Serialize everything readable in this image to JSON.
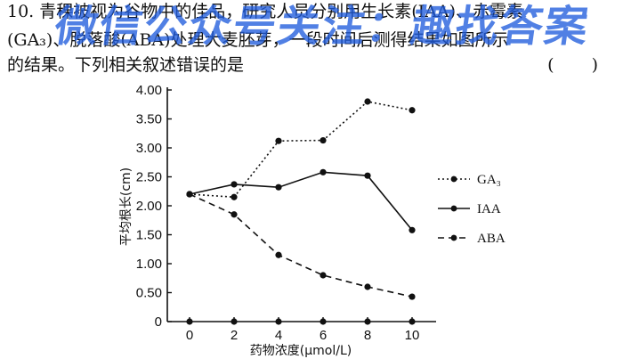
{
  "question": {
    "line1": "10. 青稞被视为谷物中的佳品，研究人员分别用生长素(IAA)、赤霉素",
    "line2": "(GA₃)、脱落酸(ABA)处理大麦胚芽，一段时间后测得结果如图所示",
    "line3": "的结果。下列相关叙述错误的是",
    "answer_parens": "(  )"
  },
  "watermark": "微信公众号关注：趣找答案",
  "chart_data": {
    "type": "line",
    "x": [
      0,
      2,
      4,
      6,
      8,
      10
    ],
    "xlabel": "药物浓度(μmol/L)",
    "ylabel": "平均根长(cm)",
    "ylim": [
      0,
      4.0
    ],
    "xticks": [
      "0",
      "2",
      "4",
      "6",
      "8",
      "10"
    ],
    "yticks": [
      "0",
      "0.50",
      "1.00",
      "1.50",
      "2.00",
      "2.50",
      "3.00",
      "3.50",
      "4.00"
    ],
    "grid": false,
    "legend_position": "right",
    "series": [
      {
        "name": "GA₃",
        "style": "dotted",
        "values": [
          2.2,
          2.15,
          3.12,
          3.13,
          3.8,
          3.65
        ]
      },
      {
        "name": "IAA",
        "style": "solid",
        "values": [
          2.2,
          2.37,
          2.32,
          2.58,
          2.52,
          1.58
        ]
      },
      {
        "name": "ABA",
        "style": "dashed",
        "values": [
          2.2,
          1.85,
          1.15,
          0.8,
          0.6,
          0.43
        ]
      }
    ]
  }
}
